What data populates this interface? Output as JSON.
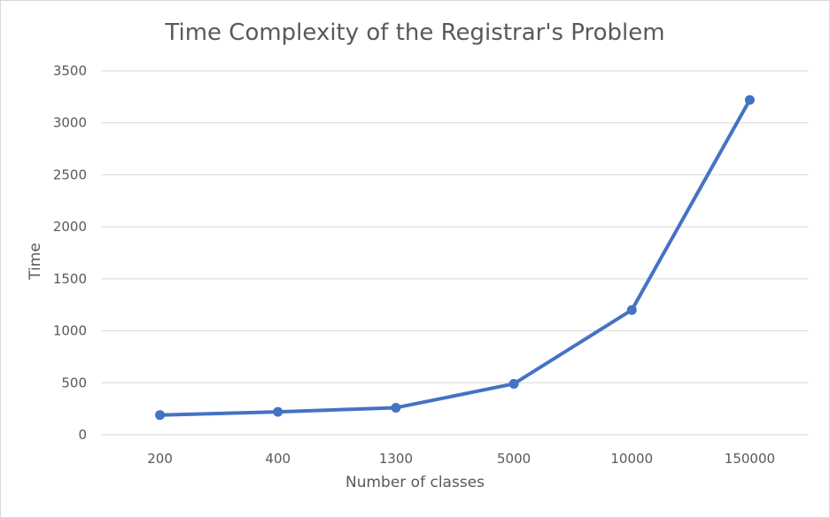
{
  "chart_data": {
    "type": "line",
    "title": "Time Complexity of the Registrar's Problem",
    "xlabel": "Number of classes",
    "ylabel": "Time",
    "categories": [
      "200",
      "400",
      "1300",
      "5000",
      "10000",
      "150000"
    ],
    "series": [
      {
        "values": [
          190,
          220,
          260,
          490,
          1200,
          3220
        ]
      }
    ],
    "ylim": [
      0,
      3500
    ],
    "yticks": [
      0,
      500,
      1000,
      1500,
      2000,
      2500,
      3000,
      3500
    ],
    "grid": true,
    "legend": "none",
    "colors": {
      "line": "#4472c4",
      "grid": "#d9d9d9",
      "text": "#595959"
    }
  }
}
